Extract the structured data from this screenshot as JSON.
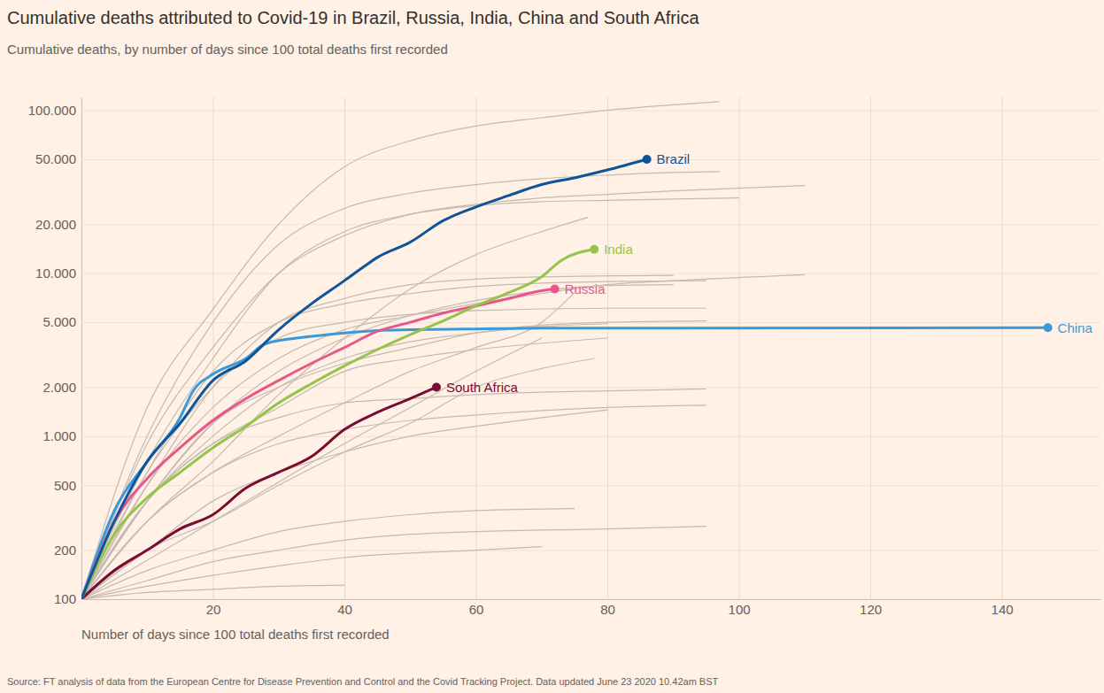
{
  "chart_data": {
    "type": "line",
    "title": "Cumulative deaths attributed to Covid-19 in Brazil, Russia, India, China and South Africa",
    "subtitle": "Cumulative deaths, by number of days since 100 total deaths first recorded",
    "x_label": "Number of days since 100 total deaths first recorded",
    "source": "Source: FT analysis of data from the European Centre for Disease Prevention and Control and the Covid Tracking Project. Data updated June 23 2020 10.42am BST",
    "log": "y",
    "grid": true,
    "xlim": [
      0,
      155
    ],
    "ylim": [
      100,
      120000
    ],
    "xticks": [
      20,
      40,
      60,
      80,
      100,
      120,
      140
    ],
    "yticks": [
      100,
      200,
      500,
      {
        "value": 1000,
        "label": "1.000"
      },
      {
        "value": 2000,
        "label": "2.000"
      },
      {
        "value": 5000,
        "label": "5.000"
      },
      {
        "value": 10000,
        "label": "10.000"
      },
      {
        "value": 20000,
        "label": "20.000"
      },
      {
        "value": 50000,
        "label": "50.000"
      },
      {
        "value": 100000,
        "label": "100.000"
      }
    ],
    "series": [
      {
        "color": "#c4bab0",
        "x": [
          0,
          10,
          20,
          30,
          40,
          50,
          60,
          70,
          80,
          90,
          97
        ],
        "values": [
          100,
          1500,
          6000,
          20000,
          45000,
          65000,
          80000,
          90000,
          100000,
          108000,
          113000
        ]
      },
      {
        "color": "#c4bab0",
        "x": [
          0,
          10,
          20,
          30,
          40,
          50,
          60,
          70,
          80,
          90,
          97
        ],
        "values": [
          100,
          1000,
          5000,
          15000,
          25000,
          31000,
          35000,
          38000,
          40000,
          41500,
          42000
        ]
      },
      {
        "color": "#c4bab0",
        "x": [
          0,
          10,
          20,
          30,
          40,
          50,
          60,
          70,
          80,
          90,
          110
        ],
        "values": [
          100,
          900,
          3500,
          10000,
          17000,
          23000,
          26500,
          29000,
          30500,
          32000,
          34500
        ]
      },
      {
        "color": "#c4bab0",
        "x": [
          0,
          10,
          20,
          30,
          40,
          50,
          60,
          70,
          80,
          100
        ],
        "values": [
          100,
          700,
          3000,
          10000,
          18000,
          23000,
          26000,
          27500,
          28000,
          29000
        ]
      },
      {
        "color": "#c4bab0",
        "x": [
          0,
          10,
          20,
          30,
          40,
          50,
          60,
          70,
          77
        ],
        "values": [
          100,
          300,
          700,
          1800,
          4000,
          8000,
          13000,
          18000,
          22000
        ]
      },
      {
        "color": "#c4bab0",
        "x": [
          0,
          10,
          20,
          30,
          40,
          50,
          60,
          70,
          80,
          90,
          110
        ],
        "values": [
          100,
          500,
          1500,
          3000,
          4500,
          5500,
          6500,
          7500,
          8500,
          9000,
          9800
        ]
      },
      {
        "color": "#c4bab0",
        "x": [
          0,
          10,
          20,
          30,
          40,
          50,
          60,
          70,
          90
        ],
        "values": [
          100,
          500,
          2000,
          5000,
          7000,
          8500,
          9200,
          9500,
          9700
        ]
      },
      {
        "color": "#c4bab0",
        "x": [
          0,
          10,
          20,
          30,
          40,
          50,
          60,
          70,
          80,
          95
        ],
        "values": [
          100,
          600,
          2500,
          5000,
          6500,
          7500,
          8300,
          8700,
          8900,
          9000
        ]
      },
      {
        "color": "#c4bab0",
        "x": [
          0,
          10,
          20,
          30,
          40,
          50,
          60,
          80,
          95
        ],
        "values": [
          100,
          600,
          2000,
          4000,
          5000,
          5600,
          5900,
          6100,
          6100
        ]
      },
      {
        "color": "#c4bab0",
        "x": [
          0,
          10,
          20,
          30,
          40,
          50,
          60,
          70,
          80,
          90
        ],
        "values": [
          100,
          400,
          1200,
          2500,
          4000,
          5500,
          6800,
          7800,
          8400,
          8500
        ]
      },
      {
        "color": "#c4bab0",
        "x": [
          0,
          10,
          20,
          30,
          40,
          50,
          60,
          70,
          75
        ],
        "values": [
          100,
          300,
          600,
          1000,
          1600,
          2500,
          3500,
          5000,
          7600
        ]
      },
      {
        "color": "#c4bab0",
        "x": [
          0,
          10,
          20,
          30,
          40,
          50,
          60,
          70,
          80,
          95
        ],
        "values": [
          100,
          400,
          1200,
          2000,
          2800,
          3500,
          4300,
          4800,
          5000,
          5100
        ]
      },
      {
        "color": "#c4bab0",
        "x": [
          0,
          10,
          20,
          30,
          40,
          50,
          60,
          70,
          80
        ],
        "values": [
          100,
          400,
          1000,
          2000,
          3000,
          3800,
          4300,
          4700,
          4900
        ]
      },
      {
        "color": "#c4bab0",
        "x": [
          0,
          20,
          40,
          50,
          60,
          70
        ],
        "values": [
          100,
          300,
          900,
          1500,
          2500,
          4000
        ]
      },
      {
        "color": "#c4bab0",
        "x": [
          0,
          10,
          20,
          30,
          40,
          50,
          60,
          70,
          78
        ],
        "values": [
          100,
          200,
          300,
          500,
          800,
          1200,
          2000,
          2600,
          3000
        ]
      },
      {
        "color": "#c4bab0",
        "x": [
          0,
          10,
          20,
          30,
          40,
          50,
          60,
          80
        ],
        "values": [
          100,
          400,
          900,
          1500,
          2500,
          3000,
          3400,
          4000
        ]
      },
      {
        "color": "#c4bab0",
        "x": [
          0,
          10,
          20,
          30,
          40,
          50,
          60,
          80,
          95
        ],
        "values": [
          100,
          400,
          900,
          1300,
          1600,
          1700,
          1800,
          1900,
          1950
        ]
      },
      {
        "color": "#c4bab0",
        "x": [
          0,
          10,
          20,
          30,
          40,
          50,
          60,
          80,
          95
        ],
        "values": [
          100,
          300,
          600,
          900,
          1100,
          1250,
          1350,
          1500,
          1550
        ]
      },
      {
        "color": "#c4bab0",
        "x": [
          0,
          10,
          20,
          30,
          40,
          50,
          60,
          70,
          80
        ],
        "values": [
          100,
          200,
          400,
          600,
          800,
          1000,
          1150,
          1300,
          1450
        ]
      },
      {
        "color": "#c4bab0",
        "x": [
          0,
          10,
          20,
          30,
          40,
          50,
          60,
          75
        ],
        "values": [
          100,
          150,
          200,
          260,
          300,
          330,
          350,
          360
        ]
      },
      {
        "color": "#c4bab0",
        "x": [
          0,
          10,
          20,
          30,
          40,
          50,
          60,
          80,
          95
        ],
        "values": [
          100,
          130,
          170,
          200,
          230,
          250,
          260,
          270,
          280
        ]
      },
      {
        "color": "#c4bab0",
        "x": [
          0,
          10,
          20,
          30,
          40,
          60,
          70
        ],
        "values": [
          100,
          120,
          140,
          160,
          180,
          200,
          210
        ]
      },
      {
        "color": "#c4bab0",
        "x": [
          0,
          10,
          20,
          30,
          40
        ],
        "values": [
          100,
          110,
          115,
          120,
          122
        ]
      },
      {
        "name": "China",
        "color": "#3a9ad9",
        "marker": "circle",
        "x": [
          0,
          5,
          10,
          15,
          17,
          20,
          25,
          28,
          35,
          40,
          45,
          50,
          60,
          70,
          147
        ],
        "values": [
          100,
          350,
          700,
          1300,
          1900,
          2400,
          3000,
          3700,
          4100,
          4300,
          4450,
          4500,
          4550,
          4600,
          4630
        ]
      },
      {
        "name": "South Africa",
        "color": "#7a0b34",
        "marker": "circle",
        "x": [
          0,
          5,
          10,
          15,
          20,
          25,
          30,
          35,
          40,
          45,
          50,
          54
        ],
        "values": [
          100,
          150,
          200,
          270,
          330,
          480,
          600,
          750,
          1100,
          1400,
          1700,
          2000
        ]
      },
      {
        "name": "Russia",
        "color": "#e8578b",
        "marker": "circle",
        "x": [
          0,
          5,
          10,
          15,
          20,
          25,
          30,
          35,
          40,
          45,
          50,
          55,
          60,
          65,
          70,
          72
        ],
        "values": [
          100,
          300,
          550,
          850,
          1250,
          1700,
          2200,
          2800,
          3500,
          4400,
          5000,
          5700,
          6300,
          7000,
          7800,
          8000
        ]
      },
      {
        "name": "India",
        "color": "#96c34a",
        "marker": "circle",
        "x": [
          0,
          5,
          10,
          15,
          20,
          25,
          30,
          35,
          40,
          45,
          50,
          55,
          60,
          65,
          70,
          73,
          78
        ],
        "values": [
          100,
          250,
          420,
          600,
          850,
          1150,
          1600,
          2100,
          2700,
          3400,
          4200,
          5100,
          6300,
          7600,
          9500,
          12000,
          14000
        ]
      },
      {
        "name": "Brazil",
        "color": "#0f5499",
        "marker": "circle",
        "x": [
          0,
          5,
          10,
          15,
          20,
          25,
          30,
          35,
          40,
          43,
          45,
          50,
          55,
          60,
          65,
          70,
          75,
          80,
          86
        ],
        "values": [
          100,
          300,
          700,
          1200,
          2200,
          2900,
          4500,
          6500,
          9000,
          11000,
          12500,
          15500,
          21000,
          25500,
          30000,
          35000,
          38500,
          43000,
          50000
        ]
      }
    ]
  }
}
